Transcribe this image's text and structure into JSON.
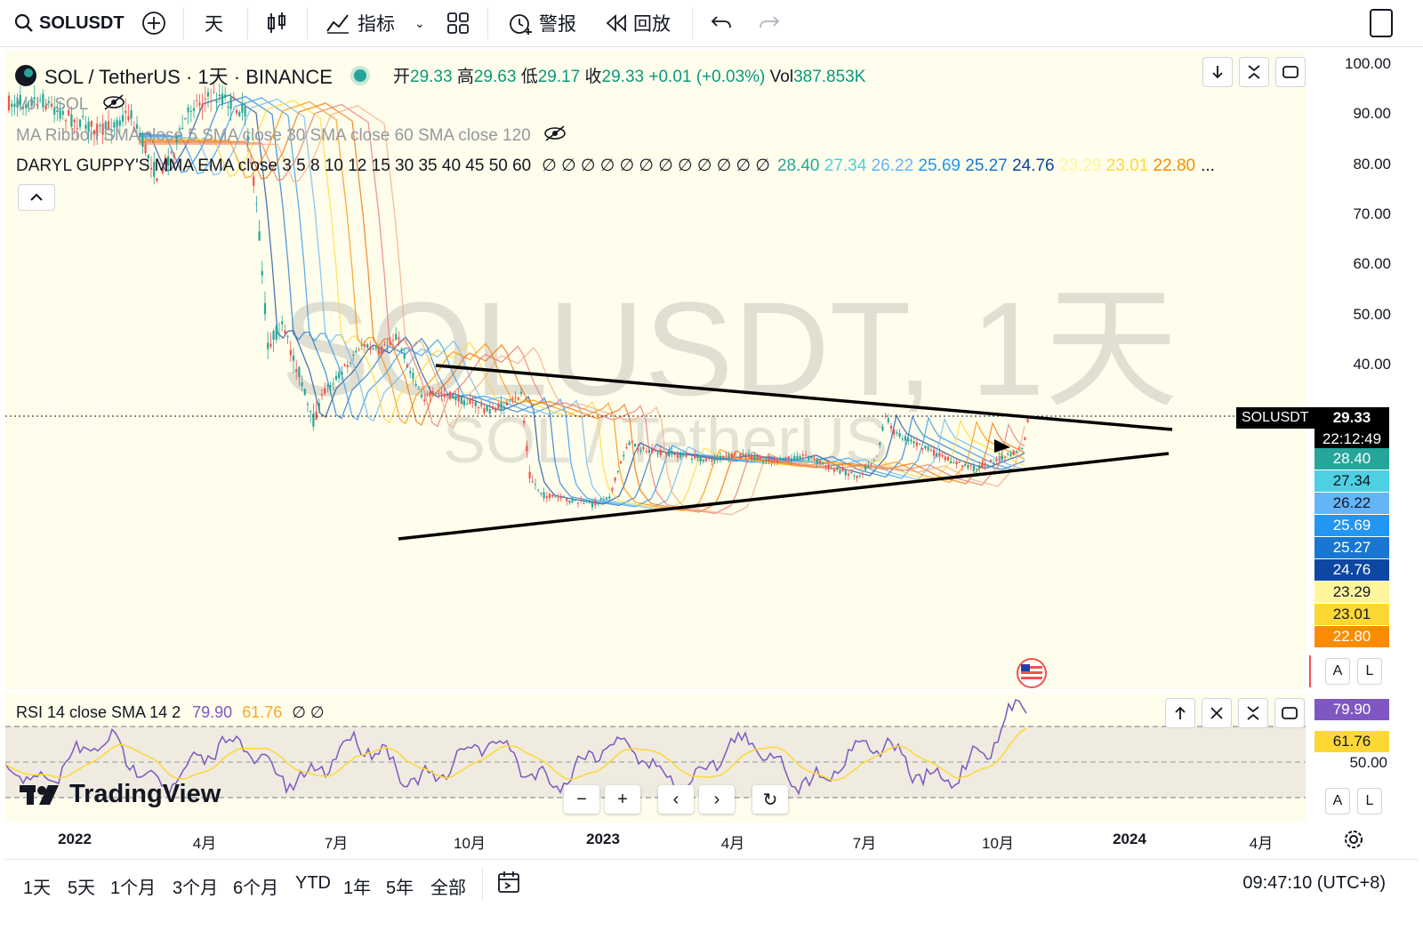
{
  "topbar": {
    "symbol": "SOLUSDT",
    "interval": "天",
    "indicators_label": "指标",
    "alert_label": "警报",
    "replay_label": "回放"
  },
  "legend": {
    "title": "SOL / TetherUS · 1天 · BINANCE",
    "ohlc": {
      "o_label": "开",
      "o": "29.33",
      "h_label": "高",
      "h": "29.63",
      "l_label": "低",
      "l": "29.17",
      "c_label": "收",
      "c": "29.33",
      "change": "+0.01 (+0.03%)",
      "vol_label": "Vol",
      "vol": "387.853K"
    },
    "vol_indicator": "Vol · SOL",
    "ma_ribbon": "MA Ribbon SMA close 5 SMA close 30 SMA close 60 SMA close 120",
    "guppy": "DARYL GUPPY'S MMA EMA close 3 5 8 10 12 15 30 35 40 45 50 60",
    "guppy_zeros": "∅ ∅ ∅ ∅ ∅ ∅ ∅ ∅ ∅ ∅ ∅ ∅",
    "guppy_values": [
      {
        "v": "28.40",
        "color": "#26a69a"
      },
      {
        "v": "27.34",
        "color": "#4dd0e1"
      },
      {
        "v": "26.22",
        "color": "#64b5f6"
      },
      {
        "v": "25.69",
        "color": "#2196f3"
      },
      {
        "v": "25.27",
        "color": "#1976d2"
      },
      {
        "v": "24.76",
        "color": "#0d47a1"
      },
      {
        "v": "23.29",
        "color": "#fff59d"
      },
      {
        "v": "23.01",
        "color": "#fdd835"
      },
      {
        "v": "22.80",
        "color": "#fb8c00"
      }
    ],
    "more": "..."
  },
  "watermark": {
    "big": "SOLUSDT, 1天",
    "small": "SOL / TetherUS"
  },
  "price_axis": [
    "100.00",
    "90.00",
    "80.00",
    "70.00",
    "60.00",
    "50.00",
    "40.00"
  ],
  "price_tags": {
    "symbol": "SOLUSDT",
    "last": "29.33",
    "countdown": "22:12:49",
    "levels": [
      {
        "v": "28.40",
        "bg": "#26a69a",
        "fg": "#ffffff"
      },
      {
        "v": "27.34",
        "bg": "#4dd0e1",
        "fg": "#131722"
      },
      {
        "v": "26.22",
        "bg": "#64b5f6",
        "fg": "#131722"
      },
      {
        "v": "25.69",
        "bg": "#2196f3",
        "fg": "#ffffff"
      },
      {
        "v": "25.27",
        "bg": "#1976d2",
        "fg": "#ffffff"
      },
      {
        "v": "24.76",
        "bg": "#0d47a1",
        "fg": "#ffffff"
      },
      {
        "v": "23.29",
        "bg": "#fff59d",
        "fg": "#131722"
      },
      {
        "v": "23.01",
        "bg": "#fdd835",
        "fg": "#131722"
      },
      {
        "v": "22.80",
        "bg": "#fb8c00",
        "fg": "#ffffff"
      }
    ]
  },
  "rsi": {
    "label": "RSI 14 close SMA 14 2",
    "v1": "79.90",
    "v2": "61.76",
    "zeros": "∅ ∅",
    "axis": "50.00",
    "tag1": "79.90",
    "tag2": "61.76"
  },
  "x_axis": [
    "2022",
    "4月",
    "7月",
    "10月",
    "2023",
    "4月",
    "7月",
    "10月",
    "2024",
    "4月"
  ],
  "timeframes": [
    "1天",
    "5天",
    "1个月",
    "3个月",
    "6个月",
    "YTD",
    "1年",
    "5年",
    "全部"
  ],
  "clock": "09:47:10 (UTC+8)",
  "scale_buttons": {
    "auto": "A",
    "log": "L"
  },
  "branding": "TradingView",
  "colors": {
    "bg": "#fffdeb",
    "up": "#26a69a",
    "down": "#ef5350",
    "rsi": "#7e57c2",
    "rsi_ma": "#fdd835"
  }
}
